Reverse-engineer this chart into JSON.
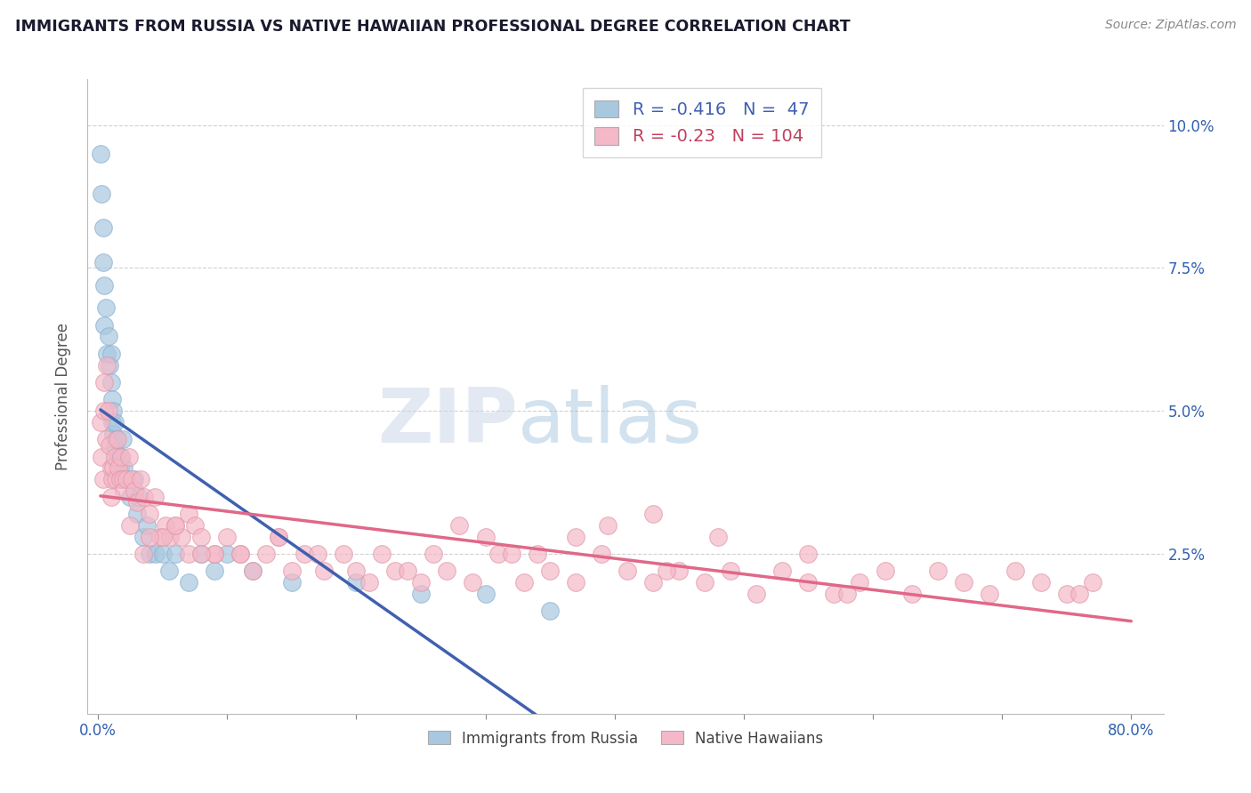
{
  "title": "IMMIGRANTS FROM RUSSIA VS NATIVE HAWAIIAN PROFESSIONAL DEGREE CORRELATION CHART",
  "source_text": "Source: ZipAtlas.com",
  "ylabel": "Professional Degree",
  "blue_R": -0.416,
  "blue_N": 47,
  "pink_R": -0.23,
  "pink_N": 104,
  "blue_color": "#a8c8e0",
  "pink_color": "#f4b8c8",
  "blue_line_color": "#4060b0",
  "pink_line_color": "#e06888",
  "legend_label_blue": "Immigrants from Russia",
  "legend_label_pink": "Native Hawaiians",
  "xlim": [
    -0.008,
    0.825
  ],
  "ylim": [
    -0.003,
    0.108
  ],
  "y_tick_positions": [
    0.025,
    0.05,
    0.075,
    0.1
  ],
  "y_tick_labels": [
    "2.5%",
    "5.0%",
    "7.5%",
    "10.0%"
  ],
  "x_tick_positions": [
    0.0,
    0.1,
    0.2,
    0.3,
    0.4,
    0.5,
    0.6,
    0.7,
    0.8
  ],
  "x_tick_labels": [
    "0.0%",
    "",
    "",
    "",
    "",
    "",
    "",
    "",
    "80.0%"
  ],
  "background_color": "#ffffff",
  "grid_color": "#cccccc",
  "title_color": "#1a1a2e",
  "axis_label_color": "#3060b0",
  "tick_color": "#3060b0",
  "blue_x": [
    0.002,
    0.003,
    0.004,
    0.004,
    0.005,
    0.005,
    0.006,
    0.007,
    0.008,
    0.009,
    0.01,
    0.01,
    0.011,
    0.011,
    0.012,
    0.012,
    0.013,
    0.013,
    0.014,
    0.015,
    0.016,
    0.017,
    0.018,
    0.019,
    0.02,
    0.022,
    0.025,
    0.028,
    0.03,
    0.032,
    0.035,
    0.038,
    0.04,
    0.045,
    0.05,
    0.055,
    0.06,
    0.07,
    0.08,
    0.09,
    0.1,
    0.12,
    0.15,
    0.2,
    0.25,
    0.3,
    0.35
  ],
  "blue_y": [
    0.095,
    0.088,
    0.082,
    0.076,
    0.065,
    0.072,
    0.068,
    0.06,
    0.063,
    0.058,
    0.055,
    0.06,
    0.052,
    0.048,
    0.05,
    0.046,
    0.048,
    0.044,
    0.045,
    0.042,
    0.041,
    0.04,
    0.042,
    0.045,
    0.04,
    0.038,
    0.035,
    0.038,
    0.032,
    0.035,
    0.028,
    0.03,
    0.025,
    0.025,
    0.025,
    0.022,
    0.025,
    0.02,
    0.025,
    0.022,
    0.025,
    0.022,
    0.02,
    0.02,
    0.018,
    0.018,
    0.015
  ],
  "pink_x": [
    0.002,
    0.003,
    0.004,
    0.005,
    0.005,
    0.006,
    0.007,
    0.008,
    0.009,
    0.01,
    0.011,
    0.012,
    0.013,
    0.014,
    0.015,
    0.016,
    0.017,
    0.018,
    0.019,
    0.02,
    0.022,
    0.024,
    0.026,
    0.028,
    0.03,
    0.033,
    0.036,
    0.04,
    0.044,
    0.048,
    0.052,
    0.056,
    0.06,
    0.065,
    0.07,
    0.075,
    0.08,
    0.09,
    0.1,
    0.11,
    0.12,
    0.13,
    0.14,
    0.15,
    0.16,
    0.175,
    0.19,
    0.21,
    0.23,
    0.25,
    0.27,
    0.29,
    0.31,
    0.33,
    0.35,
    0.37,
    0.39,
    0.41,
    0.43,
    0.45,
    0.47,
    0.49,
    0.51,
    0.53,
    0.55,
    0.57,
    0.59,
    0.61,
    0.63,
    0.65,
    0.67,
    0.69,
    0.71,
    0.73,
    0.75,
    0.77,
    0.55,
    0.58,
    0.48,
    0.43,
    0.395,
    0.37,
    0.34,
    0.32,
    0.3,
    0.28,
    0.26,
    0.24,
    0.22,
    0.2,
    0.17,
    0.14,
    0.11,
    0.09,
    0.07,
    0.05,
    0.035,
    0.025,
    0.01,
    0.04,
    0.06,
    0.08,
    0.44,
    0.76
  ],
  "pink_y": [
    0.048,
    0.042,
    0.038,
    0.055,
    0.05,
    0.045,
    0.058,
    0.05,
    0.044,
    0.04,
    0.038,
    0.04,
    0.042,
    0.038,
    0.045,
    0.04,
    0.038,
    0.042,
    0.038,
    0.036,
    0.038,
    0.042,
    0.038,
    0.036,
    0.034,
    0.038,
    0.035,
    0.032,
    0.035,
    0.028,
    0.03,
    0.028,
    0.03,
    0.028,
    0.032,
    0.03,
    0.028,
    0.025,
    0.028,
    0.025,
    0.022,
    0.025,
    0.028,
    0.022,
    0.025,
    0.022,
    0.025,
    0.02,
    0.022,
    0.02,
    0.022,
    0.02,
    0.025,
    0.02,
    0.022,
    0.02,
    0.025,
    0.022,
    0.02,
    0.022,
    0.02,
    0.022,
    0.018,
    0.022,
    0.02,
    0.018,
    0.02,
    0.022,
    0.018,
    0.022,
    0.02,
    0.018,
    0.022,
    0.02,
    0.018,
    0.02,
    0.025,
    0.018,
    0.028,
    0.032,
    0.03,
    0.028,
    0.025,
    0.025,
    0.028,
    0.03,
    0.025,
    0.022,
    0.025,
    0.022,
    0.025,
    0.028,
    0.025,
    0.025,
    0.025,
    0.028,
    0.025,
    0.03,
    0.035,
    0.028,
    0.03,
    0.025,
    0.022,
    0.018
  ]
}
